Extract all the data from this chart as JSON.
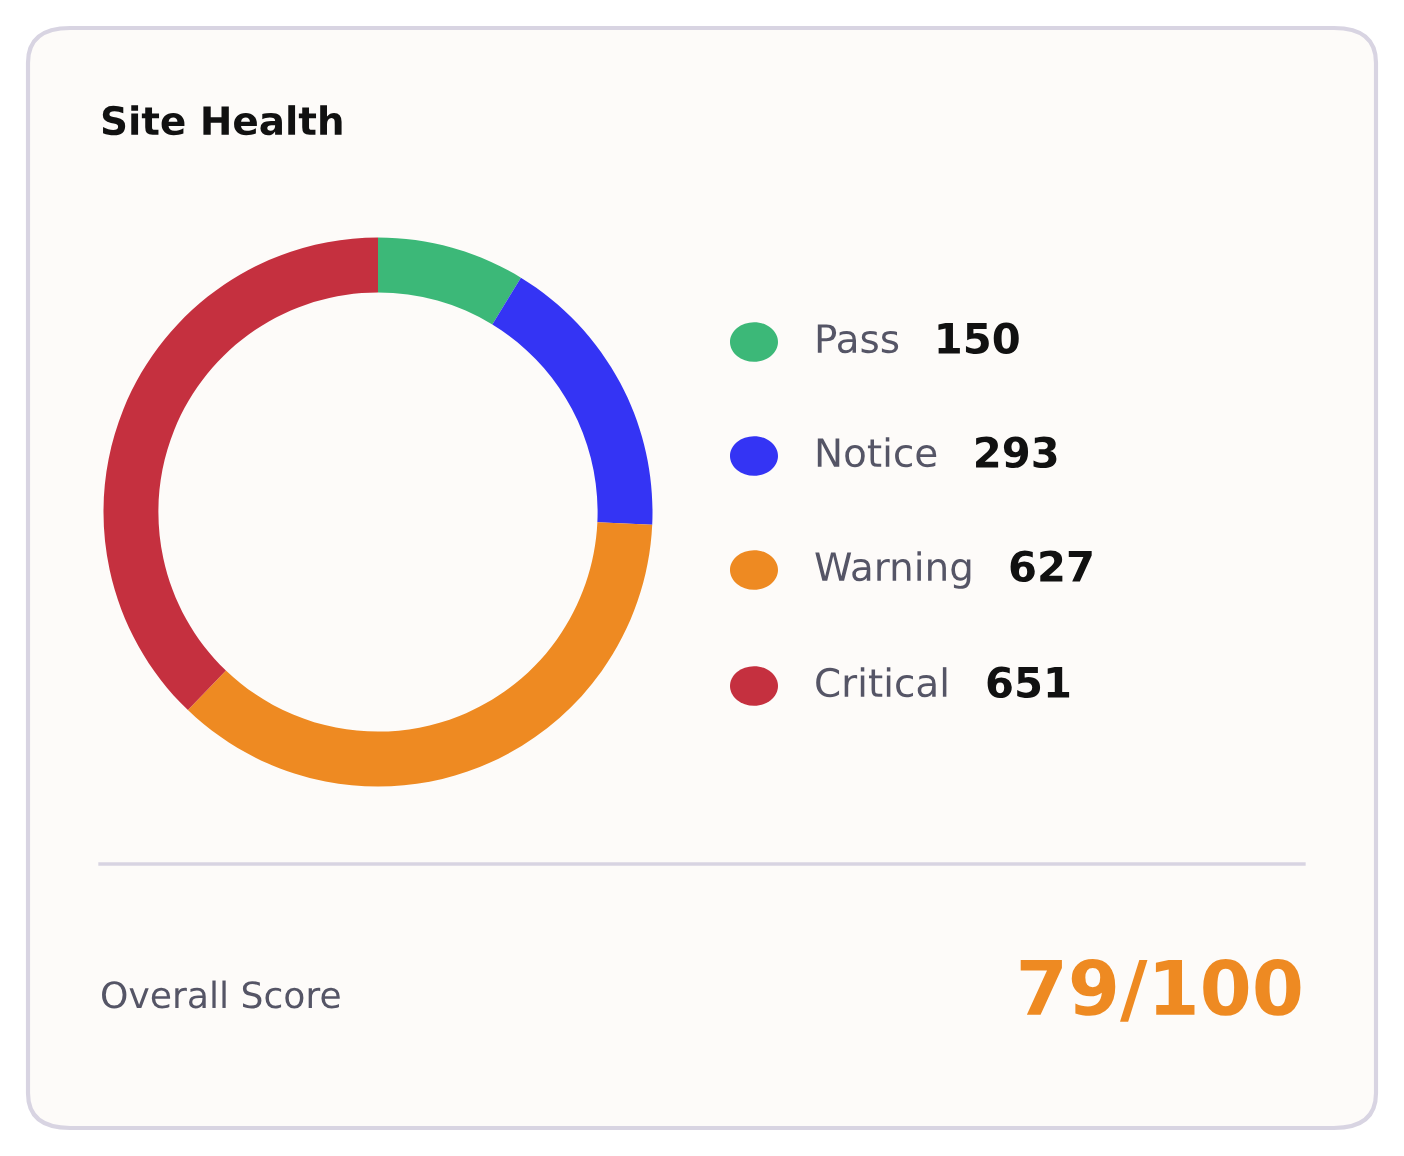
{
  "chart_data": {
    "type": "donut",
    "title": "Site Health",
    "categories": [
      "Pass",
      "Notice",
      "Warning",
      "Critical"
    ],
    "values": [
      150,
      293,
      627,
      651
    ],
    "colors": [
      "#3cb878",
      "#3434f4",
      "#ee8a22",
      "#c5303f"
    ],
    "legend": "right",
    "data_labels": true,
    "annotations": [
      "Overall Score",
      "79/100"
    ]
  }
}
